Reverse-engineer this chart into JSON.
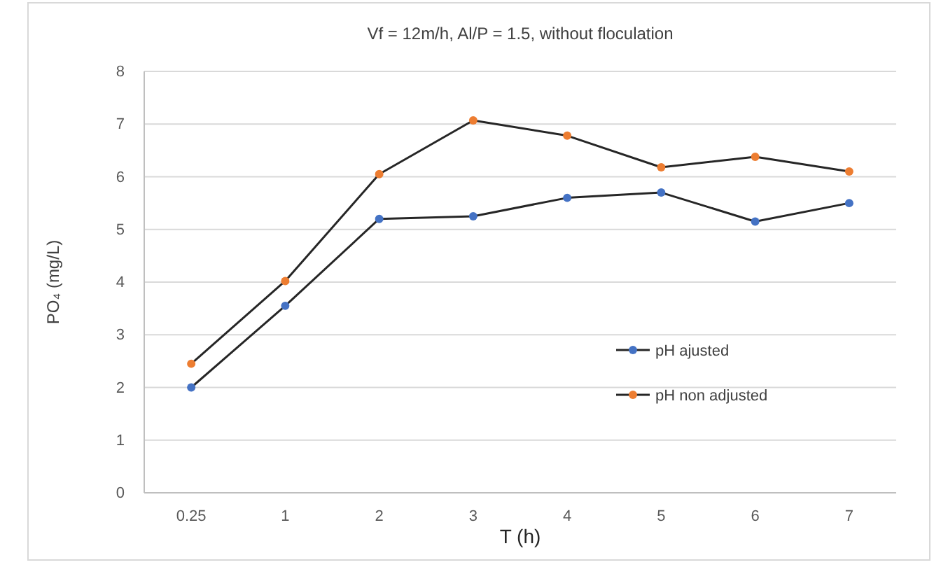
{
  "chart_data": {
    "type": "line",
    "title": "Vf = 12m/h, Al/P = 1.5, without floculation",
    "xlabel": "T (h)",
    "ylabel": "PO₄ (mg/L)",
    "categories": [
      "0.25",
      "1",
      "2",
      "3",
      "4",
      "5",
      "6",
      "7"
    ],
    "series": [
      {
        "name": "pH ajusted",
        "color": "#4472c4",
        "values": [
          2.0,
          3.55,
          5.2,
          5.25,
          5.6,
          5.7,
          5.15,
          5.5
        ]
      },
      {
        "name": "pH non adjusted",
        "color": "#ed7d31",
        "values": [
          2.45,
          4.02,
          6.05,
          7.07,
          6.78,
          6.18,
          6.38,
          6.1
        ]
      }
    ],
    "ylim": [
      0,
      8
    ],
    "yticks": [
      0,
      1,
      2,
      3,
      4,
      5,
      6,
      7,
      8
    ],
    "grid": "y",
    "legend": "right",
    "marker": "circle",
    "line_style": "solid"
  }
}
